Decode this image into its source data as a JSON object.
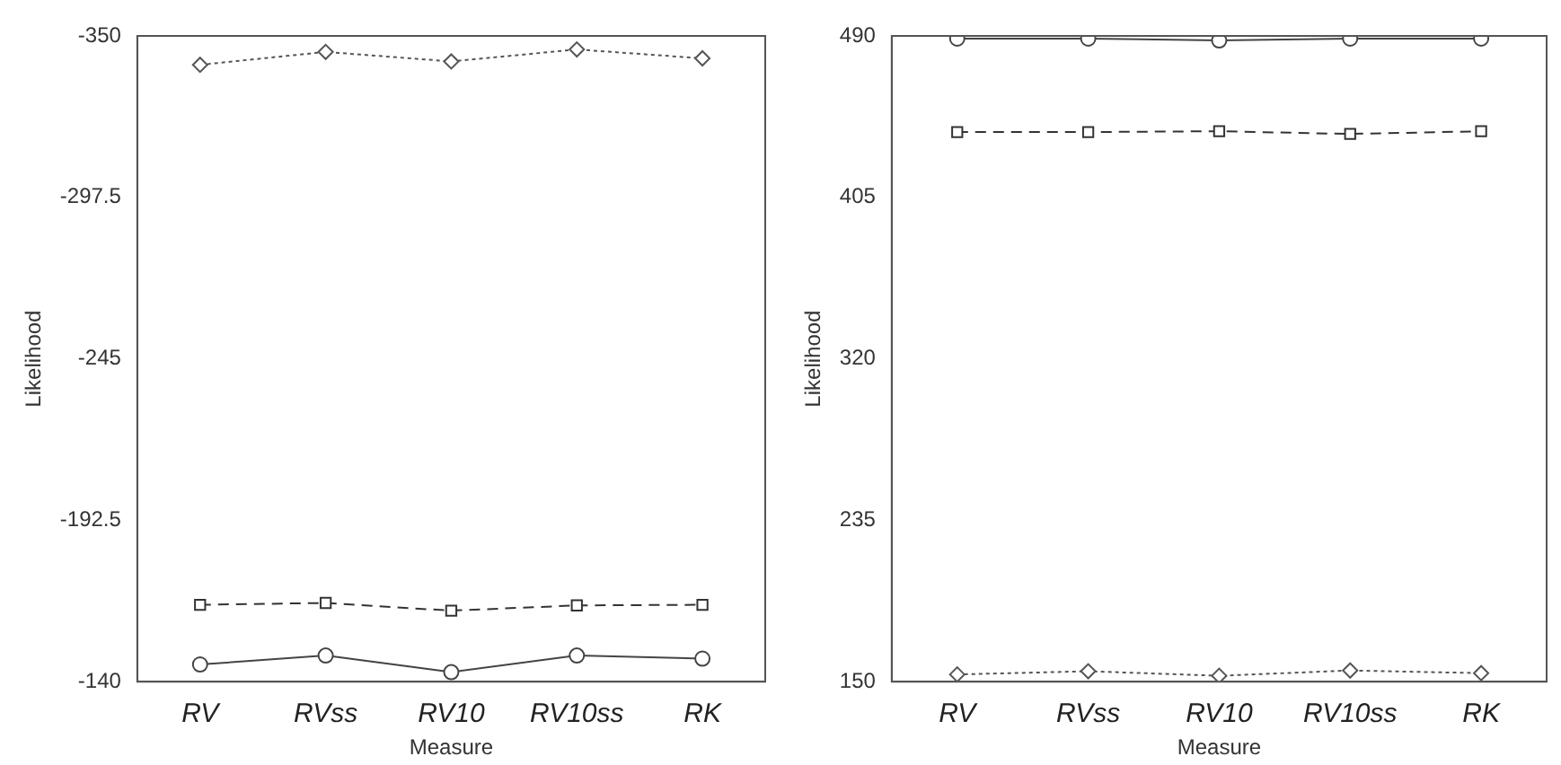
{
  "chart_data": [
    {
      "type": "line",
      "xlabel": "Measure",
      "ylabel": "Likelihood",
      "categories": [
        "RV",
        "RVss",
        "RV10",
        "RV10ss",
        "RK"
      ],
      "ylim": [
        -140,
        -350
      ],
      "yticks": [
        -350,
        -297.5,
        -245,
        -192.5,
        -140
      ],
      "grid": false,
      "legend": false,
      "series": [
        {
          "color": "#555555",
          "marker": "diamond",
          "line_style": "dotted",
          "values": [
            -340.6,
            -344.8,
            -341.7,
            -345.6,
            -342.7
          ]
        },
        {
          "color": "#333333",
          "marker": "square",
          "line_style": "dashed",
          "values": [
            -165,
            -165.6,
            -163.1,
            -164.8,
            -165
          ]
        },
        {
          "color": "#444444",
          "marker": "circle",
          "line_style": "solid",
          "values": [
            -145.6,
            -148.5,
            -143.1,
            -148.5,
            -147.5
          ]
        }
      ]
    },
    {
      "type": "line",
      "xlabel": "Measure",
      "ylabel": "Likelihood",
      "categories": [
        "RV",
        "RVss",
        "RV10",
        "RV10ss",
        "RK"
      ],
      "ylim": [
        150,
        490
      ],
      "yticks": [
        150,
        235,
        320,
        405,
        490
      ],
      "grid": false,
      "legend": false,
      "series": [
        {
          "color": "#444444",
          "marker": "circle",
          "line_style": "solid",
          "values": [
            488.6,
            488.6,
            487.6,
            488.6,
            488.6
          ]
        },
        {
          "color": "#333333",
          "marker": "square",
          "line_style": "dashed",
          "values": [
            439.4,
            439.4,
            439.8,
            438.4,
            439.8
          ]
        },
        {
          "color": "#555555",
          "marker": "diamond",
          "line_style": "dotted",
          "values": [
            153.8,
            155.5,
            153.1,
            155.9,
            154.5
          ]
        }
      ]
    }
  ]
}
